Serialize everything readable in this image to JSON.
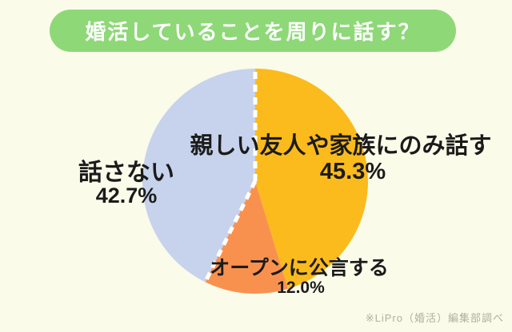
{
  "page": {
    "background_color": "#FAFBE9"
  },
  "header": {
    "title": "婚活していることを周りに話す？",
    "background_color": "#8ED878",
    "text_color": "#FFFFFF"
  },
  "chart_data": {
    "type": "pie",
    "title": "婚活していることを周りに話す？",
    "start_angle_deg": 0,
    "direction": "clockwise",
    "legend_position": "none",
    "slices": [
      {
        "label": "親しい友人や家族にのみ話す",
        "value_pct": 45.3,
        "display_pct": "45.3%",
        "color": "#FBBB1C"
      },
      {
        "label": "オープンに公言する",
        "value_pct": 12.0,
        "display_pct": "12.0%",
        "color": "#F9914E"
      },
      {
        "label": "話さない",
        "value_pct": 42.7,
        "display_pct": "42.7%",
        "color": "#C7D3ED"
      }
    ],
    "dashed_slice_index": 2,
    "dashed_line_color": "#FFFFFF"
  },
  "footer": {
    "source_note": "※LiPro（婚活）編集部調べ"
  }
}
